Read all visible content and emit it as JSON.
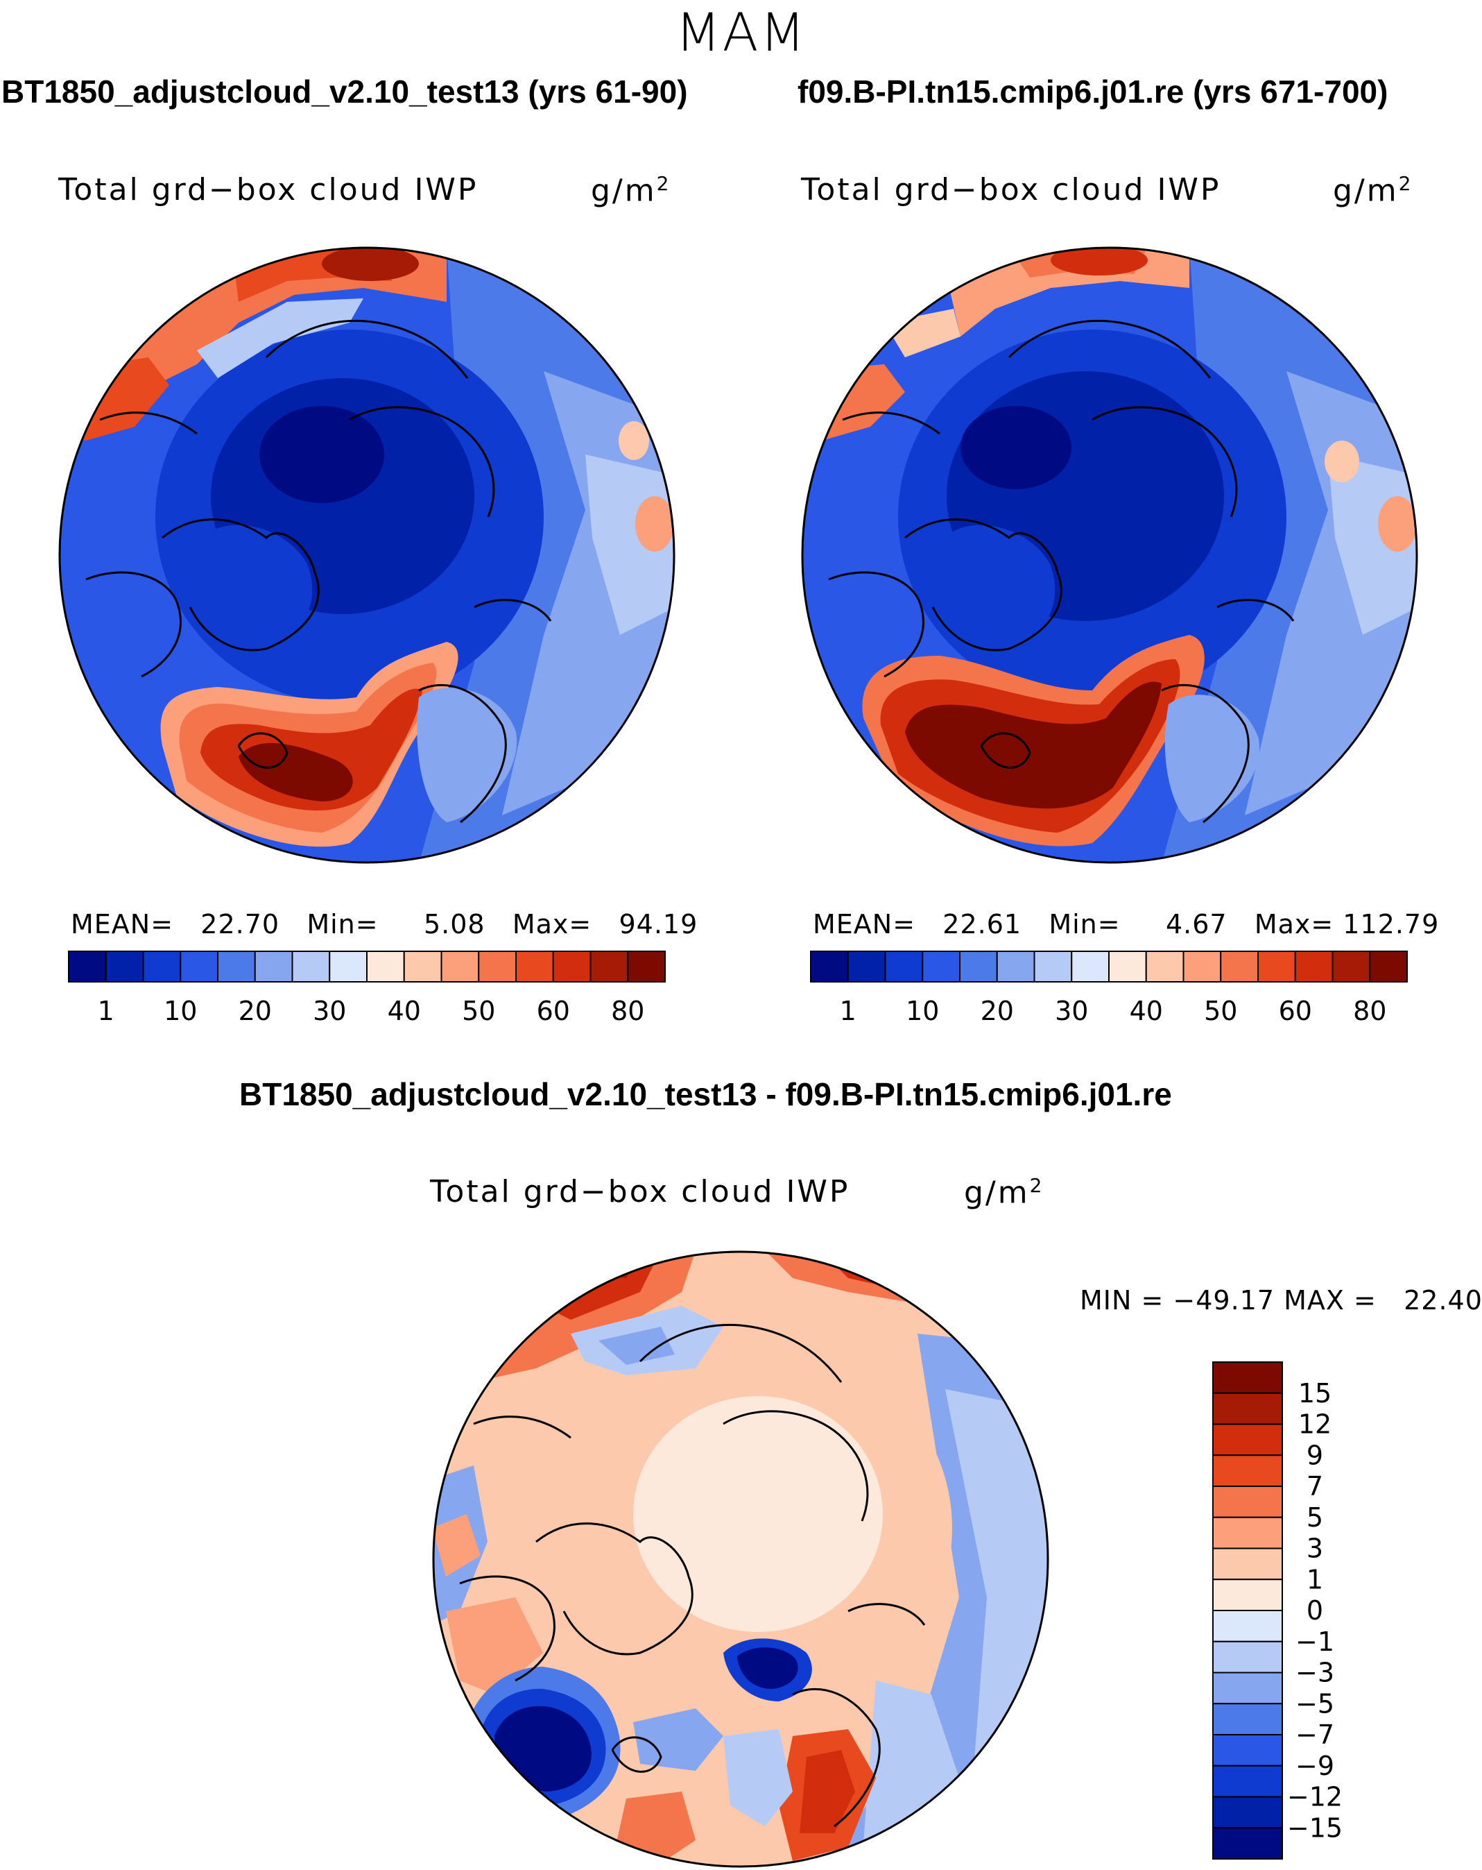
{
  "title": "MAM",
  "colors": {
    "abs_levels": [
      "#000a83",
      "#0021a8",
      "#0f3bd0",
      "#2a57e6",
      "#4c7ae9",
      "#86a6ef",
      "#b5cbf6",
      "#dbe8fb",
      "#fde9db",
      "#fdc9ad",
      "#fba07b",
      "#f4754b",
      "#e9491f",
      "#d22d0c",
      "#a51b05",
      "#7d0a00"
    ],
    "diff_levels": [
      "#7d0a00",
      "#a51b05",
      "#d22d0c",
      "#e9491f",
      "#f4754b",
      "#fba07b",
      "#fdc9ad",
      "#fde9db",
      "#dbe8fb",
      "#b5cbf6",
      "#86a6ef",
      "#4c7ae9",
      "#2a57e6",
      "#0f3bd0",
      "#0021a8",
      "#000a83"
    ]
  },
  "panels": {
    "left": {
      "case_title": "BT1850_adjustcloud_v2.10_test13 (yrs 61-90)",
      "variable": "Total grd−box cloud IWP",
      "units": "g/m",
      "units_sup": "2",
      "stats": "MEAN=   22.70   Min=     5.08   Max=   94.19"
    },
    "right": {
      "case_title": "f09.B-PI.tn15.cmip6.j01.re (yrs 671-700)",
      "variable": "Total grd−box cloud IWP",
      "units": "g/m",
      "units_sup": "2",
      "stats": "MEAN=   22.61   Min=     4.67   Max= 112.79"
    },
    "diff": {
      "case_title": "BT1850_adjustcloud_v2.10_test13 - f09.B-PI.tn15.cmip6.j01.re",
      "variable": "Total grd−box cloud IWP",
      "units": "g/m",
      "units_sup": "2",
      "stats": "MIN = −49.17 MAX =   22.40"
    }
  },
  "chart_data": [
    {
      "type": "heatmap",
      "projection": "north polar stereographic",
      "title": "BT1850_adjustcloud_v2.10_test13 (yrs 61-90)",
      "variable": "Total grd−box cloud IWP",
      "units": "g/m2",
      "mean": 22.7,
      "min": 5.08,
      "max": 94.19,
      "colorbar_ticks": [
        "1",
        "10",
        "20",
        "30",
        "40",
        "50",
        "60",
        "80"
      ]
    },
    {
      "type": "heatmap",
      "projection": "north polar stereographic",
      "title": "f09.B-PI.tn15.cmip6.j01.re (yrs 671-700)",
      "variable": "Total grd−box cloud IWP",
      "units": "g/m2",
      "mean": 22.61,
      "min": 4.67,
      "max": 112.79,
      "colorbar_ticks": [
        "1",
        "10",
        "20",
        "30",
        "40",
        "50",
        "60",
        "80"
      ]
    },
    {
      "type": "heatmap",
      "projection": "north polar stereographic",
      "title": "BT1850_adjustcloud_v2.10_test13 - f09.B-PI.tn15.cmip6.j01.re",
      "variable": "Total grd−box cloud IWP",
      "units": "g/m2",
      "min": -49.17,
      "max": 22.4,
      "colorbar_ticks": [
        "15",
        "12",
        "9",
        "7",
        "5",
        "3",
        "1",
        "0",
        "−1",
        "−3",
        "−5",
        "−7",
        "−9",
        "−12",
        "−15"
      ]
    }
  ]
}
